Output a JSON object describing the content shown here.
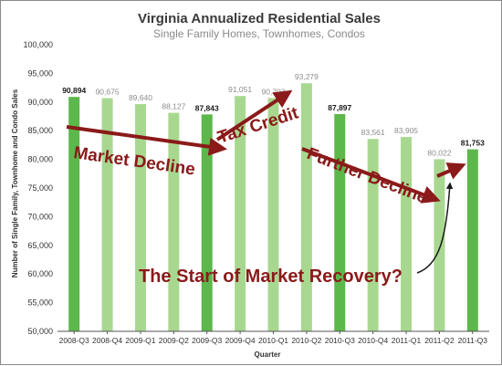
{
  "chart_data": {
    "type": "bar",
    "title": "Virginia Annualized Residential Sales",
    "subtitle": "Single Family Homes, Townhomes, Condos",
    "xlabel": "Quarter",
    "ylabel": "Number of Single Family, Townhome and Condo Sales",
    "ylim": [
      50000,
      100000
    ],
    "yticks": [
      "50,000",
      "55,000",
      "60,000",
      "65,000",
      "70,000",
      "75,000",
      "80,000",
      "85,000",
      "90,000",
      "95,000",
      "100,000"
    ],
    "ytick_values": [
      50000,
      55000,
      60000,
      65000,
      70000,
      75000,
      80000,
      85000,
      90000,
      95000,
      100000
    ],
    "grid": false,
    "categories": [
      "2008-Q3",
      "2008-Q4",
      "2009-Q1",
      "2009-Q2",
      "2009-Q3",
      "2009-Q4",
      "2010-Q1",
      "2010-Q2",
      "2010-Q3",
      "2010-Q4",
      "2011-Q1",
      "2011-Q2",
      "2011-Q3"
    ],
    "values": [
      90894,
      90675,
      89640,
      88127,
      87843,
      91051,
      90703,
      93279,
      87897,
      83561,
      83905,
      80022,
      81753
    ],
    "value_labels": [
      "90,894",
      "90,675",
      "89,640",
      "88,127",
      "87,843",
      "91,051",
      "90,703",
      "93,279",
      "87,897",
      "83,561",
      "83,905",
      "80,022",
      "81,753"
    ],
    "highlighted": [
      true,
      false,
      false,
      false,
      true,
      false,
      false,
      false,
      true,
      false,
      false,
      false,
      true
    ],
    "colors": {
      "highlight_bar": "#5cb84a",
      "normal_bar": "#a8d890",
      "highlight_label": "#1a1a1a",
      "normal_label": "#8c8c8c",
      "arrow": "#8b1a1a",
      "annotation_text": "#8b1a1a"
    },
    "annotations": [
      {
        "text": "Market Decline"
      },
      {
        "text": "Tax Credit"
      },
      {
        "text": "Further Decline"
      },
      {
        "text": "The Start of Market Recovery?"
      }
    ]
  }
}
